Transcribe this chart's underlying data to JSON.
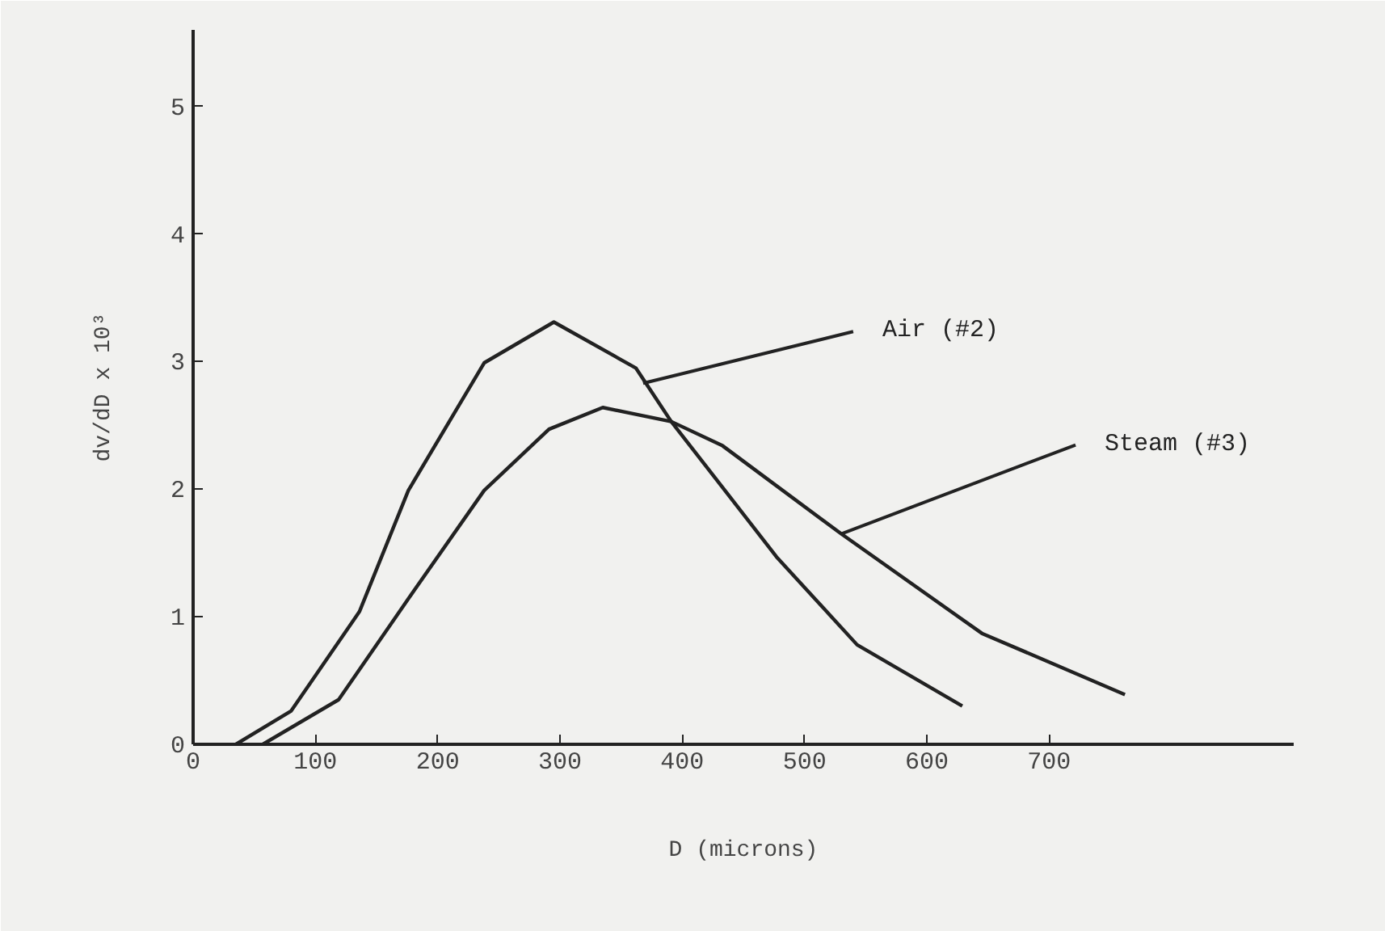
{
  "chart_data": {
    "type": "line",
    "xlabel": "D (microns)",
    "ylabel": "dv/dD x 10³",
    "xlim": [
      0,
      900
    ],
    "ylim": [
      0,
      5.6
    ],
    "xticks": [
      0,
      100,
      200,
      300,
      400,
      500,
      600,
      700
    ],
    "yticks": [
      0,
      1,
      2,
      3,
      4,
      5
    ],
    "grid": false,
    "marker": "none",
    "line_style": "solid",
    "series": [
      {
        "color": "#222222",
        "x": [
          35,
          80,
          136,
          176,
          238,
          295,
          362,
          391,
          430,
          477,
          543,
          629
        ],
        "values": [
          0,
          0.26,
          1.04,
          1.99,
          2.99,
          3.31,
          2.95,
          2.53,
          2.05,
          1.47,
          0.78,
          0.3
        ]
      },
      {
        "color": "#222222",
        "x": [
          57,
          119,
          181,
          238,
          291,
          335,
          391,
          433,
          530,
          645,
          762
        ],
        "values": [
          0,
          0.35,
          1.21,
          1.99,
          2.47,
          2.64,
          2.53,
          2.34,
          1.65,
          0.87,
          0.39
        ]
      }
    ],
    "annotations": [
      {
        "text": "Air (#2)",
        "x": 368,
        "y": 2.83
      },
      {
        "text": "Steam (#3)",
        "x": 530,
        "y": 1.65
      }
    ]
  }
}
